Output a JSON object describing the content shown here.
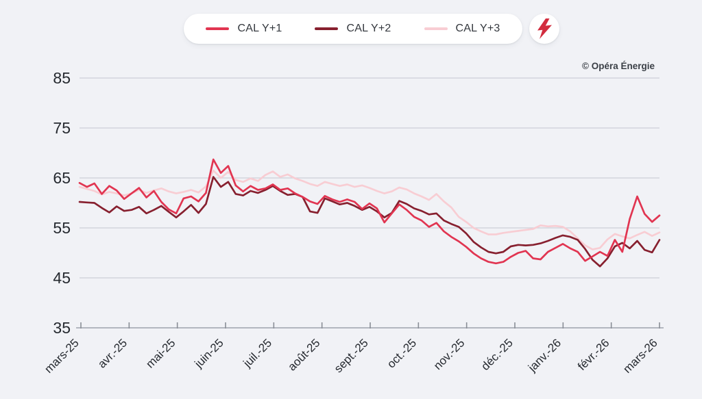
{
  "page": {
    "background": "#f1f2f6"
  },
  "legend": {
    "items": [
      {
        "label": "CAL Y+1"
      },
      {
        "label": "CAL Y+2"
      },
      {
        "label": "CAL Y+3"
      }
    ]
  },
  "logo": {
    "icon": "lightning-bolt",
    "color": "#d22d3f"
  },
  "copyright": "© Opéra Énergie",
  "chart_data": {
    "type": "line",
    "title": "",
    "xlabel": "",
    "ylabel": "",
    "legend_position": "top",
    "grid": true,
    "ylim": [
      35,
      85
    ],
    "y_ticks": [
      35,
      45,
      55,
      65,
      75,
      85
    ],
    "categories": [
      "mars-25",
      "avr.-25",
      "mai-25",
      "juin-25",
      "juil.-25",
      "août-25",
      "sept.-25",
      "oct.-25",
      "nov.-25",
      "déc.-25",
      "janv.-26",
      "févr.-26",
      "mars-26"
    ],
    "series": [
      {
        "name": "CAL Y+3",
        "color": "#f8cdd3",
        "values": [
          63.2,
          62.8,
          62.4,
          61.7,
          62.2,
          61.9,
          61.5,
          61.9,
          62.6,
          62.0,
          62.5,
          62.9,
          62.3,
          61.9,
          62.2,
          62.6,
          62.1,
          63.3,
          66.5,
          65.0,
          66.2,
          64.6,
          64.2,
          64.9,
          64.4,
          65.6,
          66.3,
          65.2,
          65.7,
          64.9,
          64.4,
          63.8,
          63.4,
          64.2,
          63.8,
          63.4,
          63.7,
          63.2,
          63.5,
          63.0,
          62.4,
          61.9,
          62.3,
          63.1,
          62.7,
          61.9,
          61.3,
          60.6,
          61.8,
          60.3,
          59.1,
          57.2,
          56.2,
          55.0,
          54.3,
          53.7,
          53.7,
          54.0,
          54.2,
          54.4,
          54.6,
          54.8,
          55.5,
          55.3,
          55.4,
          55.2,
          54.3,
          52.9,
          51.5,
          50.7,
          51.0,
          52.7,
          53.8,
          53.3,
          52.9,
          53.6,
          54.2,
          53.4,
          54.1
        ]
      },
      {
        "name": "CAL Y+2",
        "color": "#87202f",
        "values": [
          60.2,
          60.1,
          60.0,
          59.0,
          58.1,
          59.3,
          58.4,
          58.6,
          59.2,
          57.9,
          58.6,
          59.4,
          58.2,
          57.1,
          58.3,
          59.6,
          58.0,
          59.8,
          65.2,
          63.2,
          64.2,
          61.8,
          61.5,
          62.4,
          62.0,
          62.6,
          63.4,
          62.4,
          61.6,
          61.8,
          61.2,
          58.3,
          58.0,
          60.9,
          60.3,
          59.7,
          60.0,
          59.4,
          58.6,
          59.2,
          58.3,
          57.1,
          58.0,
          60.4,
          59.8,
          58.9,
          58.4,
          57.7,
          57.9,
          56.5,
          55.8,
          55.2,
          53.9,
          52.2,
          51.1,
          50.2,
          49.9,
          50.2,
          51.3,
          51.6,
          51.5,
          51.6,
          51.9,
          52.4,
          53.0,
          53.5,
          53.2,
          52.6,
          50.8,
          48.6,
          47.3,
          48.9,
          51.3,
          52.0,
          50.9,
          52.4,
          50.6,
          50.1,
          52.6
        ]
      },
      {
        "name": "CAL Y+1",
        "color": "#e13551",
        "values": [
          64.0,
          63.2,
          63.9,
          61.8,
          63.4,
          62.5,
          60.8,
          61.9,
          63.0,
          61.1,
          62.4,
          60.2,
          58.7,
          57.9,
          60.9,
          61.3,
          60.3,
          62.0,
          68.7,
          66.0,
          67.4,
          63.5,
          62.3,
          63.4,
          62.6,
          62.9,
          63.7,
          62.6,
          62.9,
          61.9,
          61.2,
          60.3,
          59.8,
          61.4,
          60.7,
          60.2,
          60.7,
          60.2,
          58.8,
          59.9,
          58.9,
          56.1,
          57.9,
          59.7,
          58.6,
          57.2,
          56.5,
          55.2,
          56.0,
          54.3,
          53.2,
          52.3,
          51.2,
          49.9,
          48.9,
          48.2,
          47.9,
          48.2,
          49.2,
          50.0,
          50.4,
          48.9,
          48.7,
          50.2,
          51.0,
          51.8,
          50.9,
          50.2,
          48.4,
          49.3,
          50.2,
          49.4,
          52.6,
          50.2,
          56.8,
          61.3,
          57.8,
          56.2,
          57.5
        ]
      }
    ]
  }
}
